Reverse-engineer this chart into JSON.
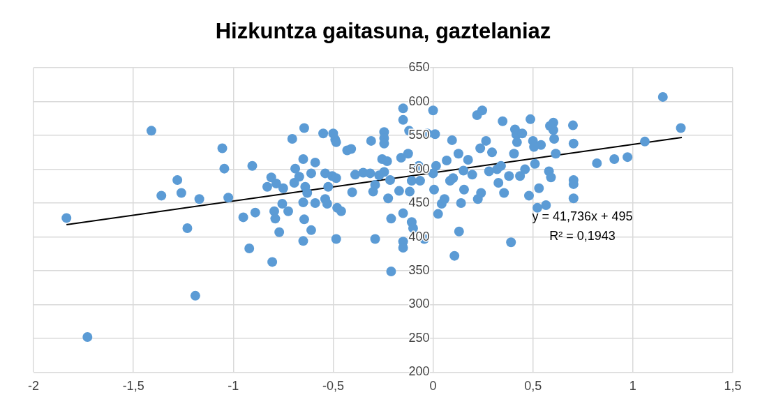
{
  "chart_data": {
    "type": "scatter",
    "title": "Hizkuntza gaitasuna, gaztelaniaz",
    "xlim": [
      -2,
      1.5
    ],
    "ylim": [
      200,
      650
    ],
    "xticks": [
      {
        "value": -2,
        "label": "-2"
      },
      {
        "value": -1.5,
        "label": "-1,5"
      },
      {
        "value": -1,
        "label": "-1"
      },
      {
        "value": -0.5,
        "label": "-0,5"
      },
      {
        "value": 0,
        "label": "0"
      },
      {
        "value": 0.5,
        "label": "0,5"
      },
      {
        "value": 1,
        "label": "1"
      },
      {
        "value": 1.5,
        "label": "1,5"
      }
    ],
    "yticks": [
      200,
      250,
      300,
      350,
      400,
      450,
      500,
      550,
      600,
      650
    ],
    "grid": true,
    "annotations": [
      "y = 41,736x + 495",
      "R² = 0,1943"
    ],
    "series": [
      {
        "color": "#5b9bd5",
        "marker": "circle",
        "x": [
          -1.835,
          -1.73,
          -1.41,
          -1.36,
          -1.28,
          -1.26,
          -1.23,
          -1.19,
          -1.17,
          -1.055,
          -1.045,
          -1.025,
          -0.95,
          -0.92,
          -0.905,
          -0.89,
          -0.83,
          -0.81,
          -0.805,
          -0.795,
          -0.79,
          -0.785,
          -0.77,
          -0.755,
          -0.75,
          -0.725,
          -0.705,
          -0.695,
          -0.69,
          -0.67,
          -0.65,
          -0.65,
          -0.65,
          -0.645,
          -0.645,
          -0.64,
          -0.63,
          -0.61,
          -0.61,
          -0.59,
          -0.59,
          -0.55,
          -0.54,
          -0.54,
          -0.53,
          -0.525,
          -0.505,
          -0.5,
          -0.49,
          -0.485,
          -0.485,
          -0.48,
          -0.485,
          -0.46,
          -0.43,
          -0.41,
          -0.405,
          -0.39,
          -0.35,
          -0.315,
          -0.31,
          -0.3,
          -0.29,
          -0.29,
          -0.27,
          -0.255,
          -0.245,
          -0.245,
          -0.245,
          -0.245,
          -0.23,
          -0.225,
          -0.215,
          -0.21,
          -0.21,
          -0.17,
          -0.16,
          -0.15,
          -0.15,
          -0.15,
          -0.15,
          -0.15,
          -0.125,
          -0.117,
          -0.12,
          -0.107,
          -0.107,
          -0.1,
          -0.072,
          -0.065,
          -0.044,
          -0.03,
          0,
          0,
          0.005,
          0.01,
          0.015,
          0.025,
          0.043,
          0.057,
          0.068,
          0.085,
          0.095,
          0.1,
          0.107,
          0.127,
          0.13,
          0.14,
          0.152,
          0.155,
          0.175,
          0.196,
          0.22,
          0.224,
          0.24,
          0.246,
          0.236,
          0.265,
          0.28,
          0.295,
          0.32,
          0.327,
          0.34,
          0.348,
          0.355,
          0.38,
          0.39,
          0.405,
          0.41,
          0.417,
          0.435,
          0.446,
          0.46,
          0.48,
          0.487,
          0.5,
          0.51,
          0.522,
          0.53,
          0.54,
          0.565,
          0.58,
          0.59,
          0.602,
          0.602,
          0.614,
          0.606,
          0.7,
          0.703,
          0.703,
          0.703,
          0.703,
          0.82,
          0.907,
          0.973,
          1.06,
          1.15,
          1.24,
          0.585,
          0.42,
          0.505
        ],
        "values": [
          428,
          252,
          557,
          461,
          484,
          465,
          413,
          313,
          456,
          531,
          501,
          458,
          429,
          383,
          505,
          436,
          474,
          488,
          363,
          438,
          427,
          479,
          407,
          449,
          472,
          438,
          545,
          480,
          501,
          489,
          515,
          451,
          394,
          561,
          426,
          474,
          465,
          410,
          494,
          510,
          450,
          553,
          456,
          494,
          449,
          474,
          490,
          553,
          544,
          540,
          397,
          443,
          487,
          438,
          528,
          530,
          466,
          492,
          495,
          494,
          542,
          467,
          477,
          397,
          491,
          515,
          555,
          546,
          538,
          496,
          512,
          457,
          484,
          427,
          349,
          468,
          517,
          590,
          573,
          435,
          393,
          384,
          523,
          467,
          557,
          483,
          422,
          413,
          505,
          483,
          397,
          553,
          587,
          494,
          470,
          552,
          505,
          434,
          449,
          456,
          513,
          483,
          543,
          487,
          372,
          523,
          408,
          450,
          498,
          470,
          514,
          492,
          580,
          456,
          465,
          587,
          531,
          542,
          497,
          525,
          500,
          480,
          505,
          571,
          465,
          490,
          392,
          523,
          559,
          551,
          490,
          553,
          500,
          461,
          574,
          542,
          508,
          443,
          472,
          536,
          447,
          497,
          488,
          569,
          558,
          523,
          545,
          565,
          538,
          484,
          478,
          457,
          509,
          515,
          518,
          541,
          607,
          561,
          564,
          540,
          533
        ]
      },
      {
        "type": "line",
        "color": "#000000",
        "x": [
          -1.835,
          1.245
        ],
        "values": [
          418,
          547
        ]
      }
    ]
  }
}
